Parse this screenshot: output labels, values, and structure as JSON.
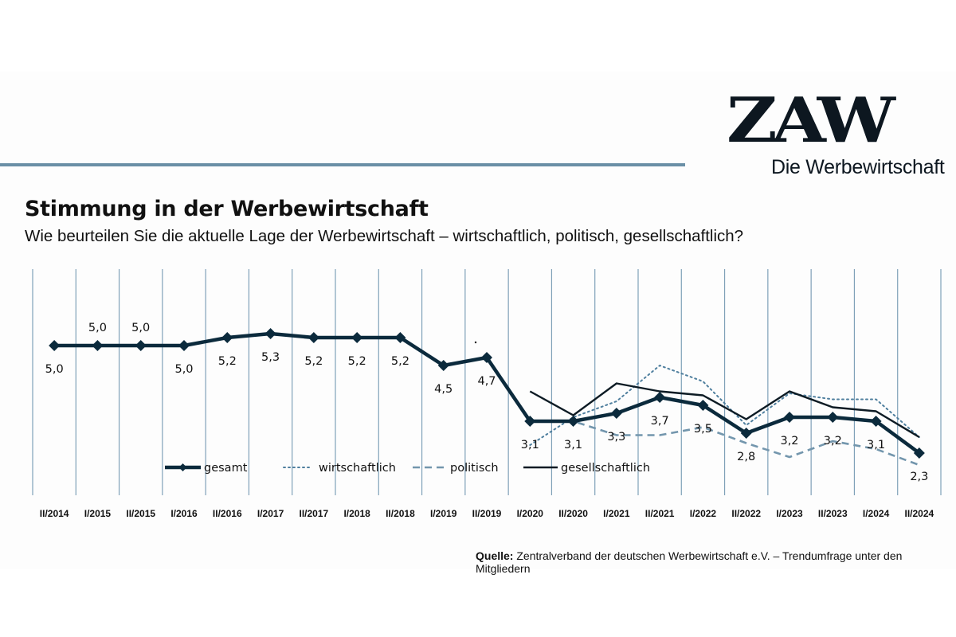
{
  "logo": {
    "mark": "ZAW",
    "tagline": "Die Werbewirtschaft"
  },
  "header": {
    "title": "Stimmung in der Werbewirtschaft",
    "subtitle": "Wie beurteilen Sie die aktuelle Lage der Werbewirtschaft – wirtschaftlich, politisch, gesellschaftlich?"
  },
  "source": {
    "label": "Quelle:",
    "text": " Zentralverband der deutschen Werbewirtschaft e.V. – Trendumfrage unter den Mitgliedern"
  },
  "colors": {
    "gesamt": "#0b2a3c",
    "wirtschaftlich": "#4f7f9e",
    "politisch": "#7396ad",
    "gesellschaftlich": "#0d1b24",
    "grid": "#7fa1b8",
    "rule": "#6a8fa6"
  },
  "chart_data": {
    "type": "line",
    "title": "Stimmung in der Werbewirtschaft",
    "subtitle": "Wie beurteilen Sie die aktuelle Lage der Werbewirtschaft – wirtschaftlich, politisch, gesellschaftlich?",
    "xlabel": "",
    "ylabel": "",
    "ylim": [
      1.6,
      6.3
    ],
    "grid": "vertical",
    "legend_position": "bottom-center",
    "categories": [
      "II/2014",
      "I/2015",
      "II/2015",
      "I/2016",
      "II/2016",
      "I/2017",
      "II/2017",
      "I/2018",
      "II/2018",
      "I/2019",
      "II/2019",
      "I/2020",
      "II/2020",
      "I/2021",
      "II/2021",
      "I/2022",
      "II/2022",
      "I/2023",
      "II/2023",
      "I/2024",
      "II/2024"
    ],
    "series": [
      {
        "name": "gesamt",
        "style": "solid-thick-diamond",
        "values": [
          5.0,
          5.0,
          5.0,
          5.0,
          5.2,
          5.3,
          5.2,
          5.2,
          5.2,
          4.5,
          4.7,
          3.1,
          3.1,
          3.3,
          3.7,
          3.5,
          2.8,
          3.2,
          3.2,
          3.1,
          2.3
        ],
        "labels": [
          "5,0",
          "5,0",
          "5,0",
          "5,0",
          "5,2",
          "5,3",
          "5,2",
          "5,2",
          "5,2",
          "4,5",
          "4,7",
          "3,1",
          "3,1",
          "3,3",
          "3,7",
          "3,5",
          "2,8",
          "3,2",
          "3,2",
          "3,1",
          "2,3"
        ],
        "label_pos": [
          "below",
          "above",
          "above",
          "below",
          "below",
          "below",
          "below",
          "below",
          "below",
          "below",
          "below",
          "below",
          "below",
          "below",
          "below",
          "below",
          "below",
          "below",
          "below",
          "below",
          "below"
        ]
      },
      {
        "name": "wirtschaftlich",
        "style": "dotted",
        "values": [
          null,
          null,
          null,
          null,
          null,
          null,
          null,
          null,
          null,
          null,
          null,
          2.5,
          3.2,
          3.6,
          4.5,
          4.1,
          3.0,
          3.8,
          3.65,
          3.65,
          2.7
        ]
      },
      {
        "name": "politisch",
        "style": "dashed",
        "values": [
          null,
          null,
          null,
          null,
          null,
          null,
          null,
          null,
          null,
          null,
          null,
          3.1,
          3.1,
          2.75,
          2.75,
          2.95,
          2.55,
          2.2,
          2.6,
          2.4,
          2.0
        ]
      },
      {
        "name": "gesellschaftlich",
        "style": "solid-thin",
        "values": [
          null,
          null,
          null,
          null,
          null,
          null,
          null,
          null,
          null,
          null,
          null,
          3.85,
          3.25,
          4.05,
          3.85,
          3.75,
          3.15,
          3.85,
          3.45,
          3.35,
          2.7
        ]
      }
    ],
    "legend": [
      "gesamt",
      "wirtschaftlich",
      "politisch",
      "gesellschaftlich"
    ]
  }
}
